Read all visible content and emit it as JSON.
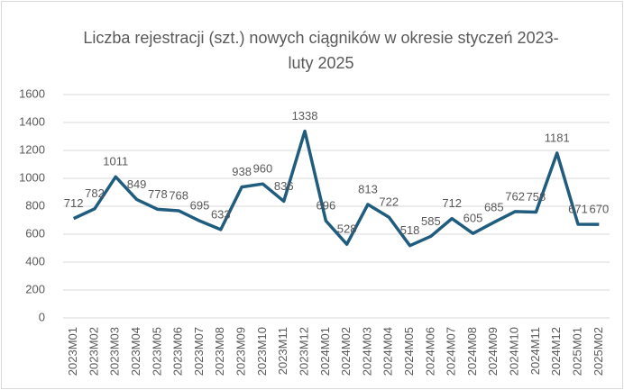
{
  "chart_data": {
    "type": "line",
    "title": "Liczba rejestracji (szt.) nowych ciągników w okresie styczeń 2023-luty 2025",
    "categories": [
      "2023M01",
      "2023M02",
      "2023M03",
      "2023M04",
      "2023M05",
      "2023M06",
      "2023M07",
      "2023M08",
      "2023M09",
      "2023M10",
      "2023M11",
      "2023M12",
      "2024M01",
      "2024M02",
      "2024M03",
      "2024M04",
      "2024M05",
      "2024M06",
      "2024M07",
      "2024M08",
      "2024M09",
      "2024M10",
      "2024M11",
      "2024M12",
      "2025M01",
      "2025M02"
    ],
    "values": [
      712,
      782,
      1011,
      849,
      778,
      768,
      695,
      633,
      938,
      960,
      836,
      1338,
      696,
      528,
      813,
      722,
      518,
      585,
      712,
      605,
      685,
      762,
      758,
      1181,
      671,
      670
    ],
    "color": "#1f5c7e",
    "ylim": [
      0,
      1600
    ],
    "yticks": [
      0,
      200,
      400,
      600,
      800,
      1000,
      1200,
      1400,
      1600
    ],
    "grid": true
  }
}
